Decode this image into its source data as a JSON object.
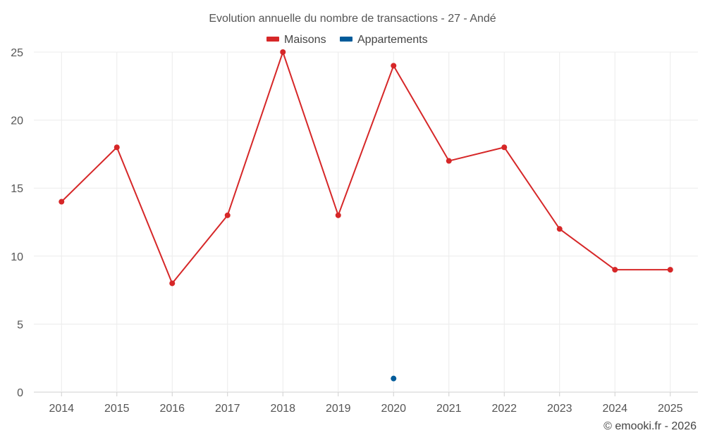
{
  "chart_data": {
    "type": "line",
    "title": "Evolution annuelle du nombre de transactions - 27 - Andé",
    "categories": [
      "2014",
      "2015",
      "2016",
      "2017",
      "2018",
      "2019",
      "2020",
      "2021",
      "2022",
      "2023",
      "2024",
      "2025"
    ],
    "series": [
      {
        "name": "Maisons",
        "color": "#d62728",
        "values": [
          14,
          18,
          8,
          13,
          25,
          13,
          24,
          17,
          18,
          12,
          9,
          9
        ]
      },
      {
        "name": "Appartements",
        "color": "#005b9a",
        "values": [
          null,
          null,
          null,
          null,
          null,
          null,
          1,
          null,
          null,
          null,
          null,
          null
        ]
      }
    ],
    "ylim": [
      0,
      25
    ],
    "yticks": [
      0,
      5,
      10,
      15,
      20,
      25
    ],
    "xlabel": "",
    "ylabel": "",
    "grid": true,
    "legend": "top-center"
  },
  "credit": "© emooki.fr - 2026"
}
